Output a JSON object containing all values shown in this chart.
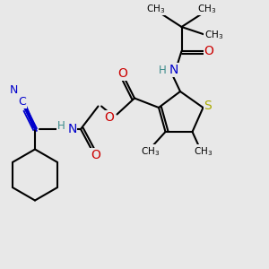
{
  "bg_color": "#e8e8e8",
  "bond_color": "#000000",
  "bond_width": 1.5,
  "atom_colors": {
    "N": "#0000cc",
    "O": "#cc0000",
    "S": "#aaaa00",
    "C": "#000000",
    "H": "#3a8a8a"
  }
}
